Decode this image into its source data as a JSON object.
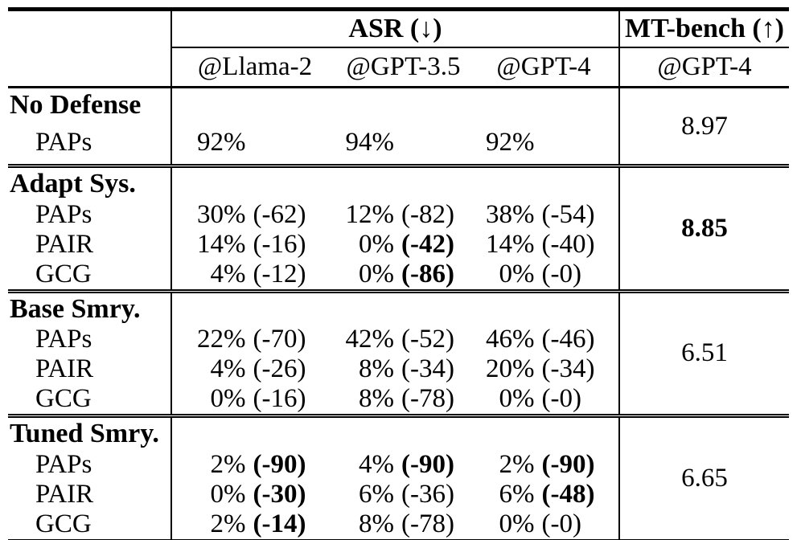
{
  "table": {
    "header": {
      "asr_label": "ASR (↓)",
      "mtbench_label": "MT-bench (↑)",
      "asr_columns": [
        "@Llama-2",
        "@GPT-3.5",
        "@GPT-4"
      ],
      "mtbench_column": "@GPT-4"
    },
    "sections": [
      {
        "name": "No Defense",
        "mtbench": {
          "value": "8.97",
          "bold": false
        },
        "rows": [
          {
            "label": "PAPs",
            "cells": [
              {
                "pct": "92%",
                "delta": "",
                "delta_bold": false
              },
              {
                "pct": "94%",
                "delta": "",
                "delta_bold": false
              },
              {
                "pct": "92%",
                "delta": "",
                "delta_bold": false
              }
            ]
          }
        ]
      },
      {
        "name": "Adapt Sys.",
        "mtbench": {
          "value": "8.85",
          "bold": true
        },
        "rows": [
          {
            "label": "PAPs",
            "cells": [
              {
                "pct": "30%",
                "delta": "(-62)",
                "delta_bold": false
              },
              {
                "pct": "12%",
                "delta": "(-82)",
                "delta_bold": false
              },
              {
                "pct": "38%",
                "delta": "(-54)",
                "delta_bold": false
              }
            ]
          },
          {
            "label": "PAIR",
            "cells": [
              {
                "pct": "14%",
                "delta": "(-16)",
                "delta_bold": false
              },
              {
                "pct": "0%",
                "delta": "(-42)",
                "delta_bold": true
              },
              {
                "pct": "14%",
                "delta": "(-40)",
                "delta_bold": false
              }
            ]
          },
          {
            "label": "GCG",
            "cells": [
              {
                "pct": "4%",
                "delta": "(-12)",
                "delta_bold": false
              },
              {
                "pct": "0%",
                "delta": "(-86)",
                "delta_bold": true
              },
              {
                "pct": "0%",
                "delta": "(-0)",
                "delta_bold": false
              }
            ]
          }
        ]
      },
      {
        "name": "Base Smry.",
        "mtbench": {
          "value": "6.51",
          "bold": false
        },
        "rows": [
          {
            "label": "PAPs",
            "cells": [
              {
                "pct": "22%",
                "delta": "(-70)",
                "delta_bold": false
              },
              {
                "pct": "42%",
                "delta": "(-52)",
                "delta_bold": false
              },
              {
                "pct": "46%",
                "delta": "(-46)",
                "delta_bold": false
              }
            ]
          },
          {
            "label": "PAIR",
            "cells": [
              {
                "pct": "4%",
                "delta": "(-26)",
                "delta_bold": false
              },
              {
                "pct": "8%",
                "delta": "(-34)",
                "delta_bold": false
              },
              {
                "pct": "20%",
                "delta": "(-34)",
                "delta_bold": false
              }
            ]
          },
          {
            "label": "GCG",
            "cells": [
              {
                "pct": "0%",
                "delta": "(-16)",
                "delta_bold": false
              },
              {
                "pct": "8%",
                "delta": "(-78)",
                "delta_bold": false
              },
              {
                "pct": "0%",
                "delta": "(-0)",
                "delta_bold": false
              }
            ]
          }
        ]
      },
      {
        "name": "Tuned Smry.",
        "mtbench": {
          "value": "6.65",
          "bold": false
        },
        "rows": [
          {
            "label": "PAPs",
            "cells": [
              {
                "pct": "2%",
                "delta": "(-90)",
                "delta_bold": true
              },
              {
                "pct": "4%",
                "delta": "(-90)",
                "delta_bold": true
              },
              {
                "pct": "2%",
                "delta": "(-90)",
                "delta_bold": true
              }
            ]
          },
          {
            "label": "PAIR",
            "cells": [
              {
                "pct": "0%",
                "delta": "(-30)",
                "delta_bold": true
              },
              {
                "pct": "6%",
                "delta": "(-36)",
                "delta_bold": false
              },
              {
                "pct": "6%",
                "delta": "(-48)",
                "delta_bold": true
              }
            ]
          },
          {
            "label": "GCG",
            "cells": [
              {
                "pct": "2%",
                "delta": "(-14)",
                "delta_bold": true
              },
              {
                "pct": "8%",
                "delta": "(-78)",
                "delta_bold": false
              },
              {
                "pct": "0%",
                "delta": "(-0)",
                "delta_bold": false
              }
            ]
          }
        ]
      }
    ]
  }
}
